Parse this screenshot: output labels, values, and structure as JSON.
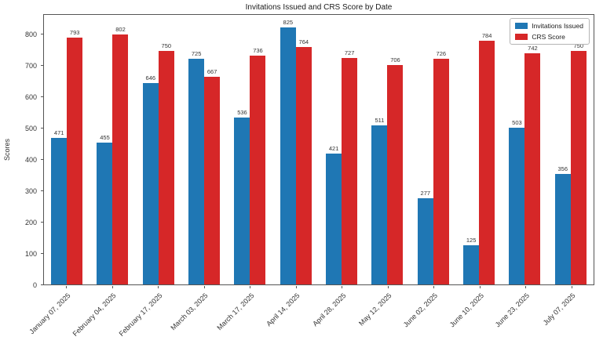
{
  "title": "Invitations Issued and CRS Score by Date",
  "ylabel": "Scores",
  "colors": {
    "invitations": "#1f77b4",
    "crs": "#d62728"
  },
  "chart_data": {
    "type": "bar",
    "title": "Invitations Issued and CRS Score by Date",
    "xlabel": "",
    "ylabel": "Scores",
    "categories": [
      "January 07, 2025",
      "February 04, 2025",
      "February 17, 2025",
      "March 03, 2025",
      "March 17, 2025",
      "April 14, 2025",
      "April 28, 2025",
      "May 12, 2025",
      "June 02, 2025",
      "June 10, 2025",
      "June 23, 2025",
      "July 07, 2025"
    ],
    "series": [
      {
        "name": "Invitations Issued",
        "color": "#1f77b4",
        "values": [
          471,
          455,
          646,
          725,
          536,
          825,
          421,
          511,
          277,
          125,
          503,
          356
        ]
      },
      {
        "name": "CRS Score",
        "color": "#d62728",
        "values": [
          793,
          802,
          750,
          667,
          736,
          764,
          727,
          706,
          726,
          784,
          742,
          750
        ]
      }
    ],
    "ylim": [
      0,
      866
    ],
    "yticks": [
      0,
      100,
      200,
      300,
      400,
      500,
      600,
      700,
      800
    ],
    "grid": false,
    "legend_position": "upper right",
    "bar_value_labels": true
  }
}
